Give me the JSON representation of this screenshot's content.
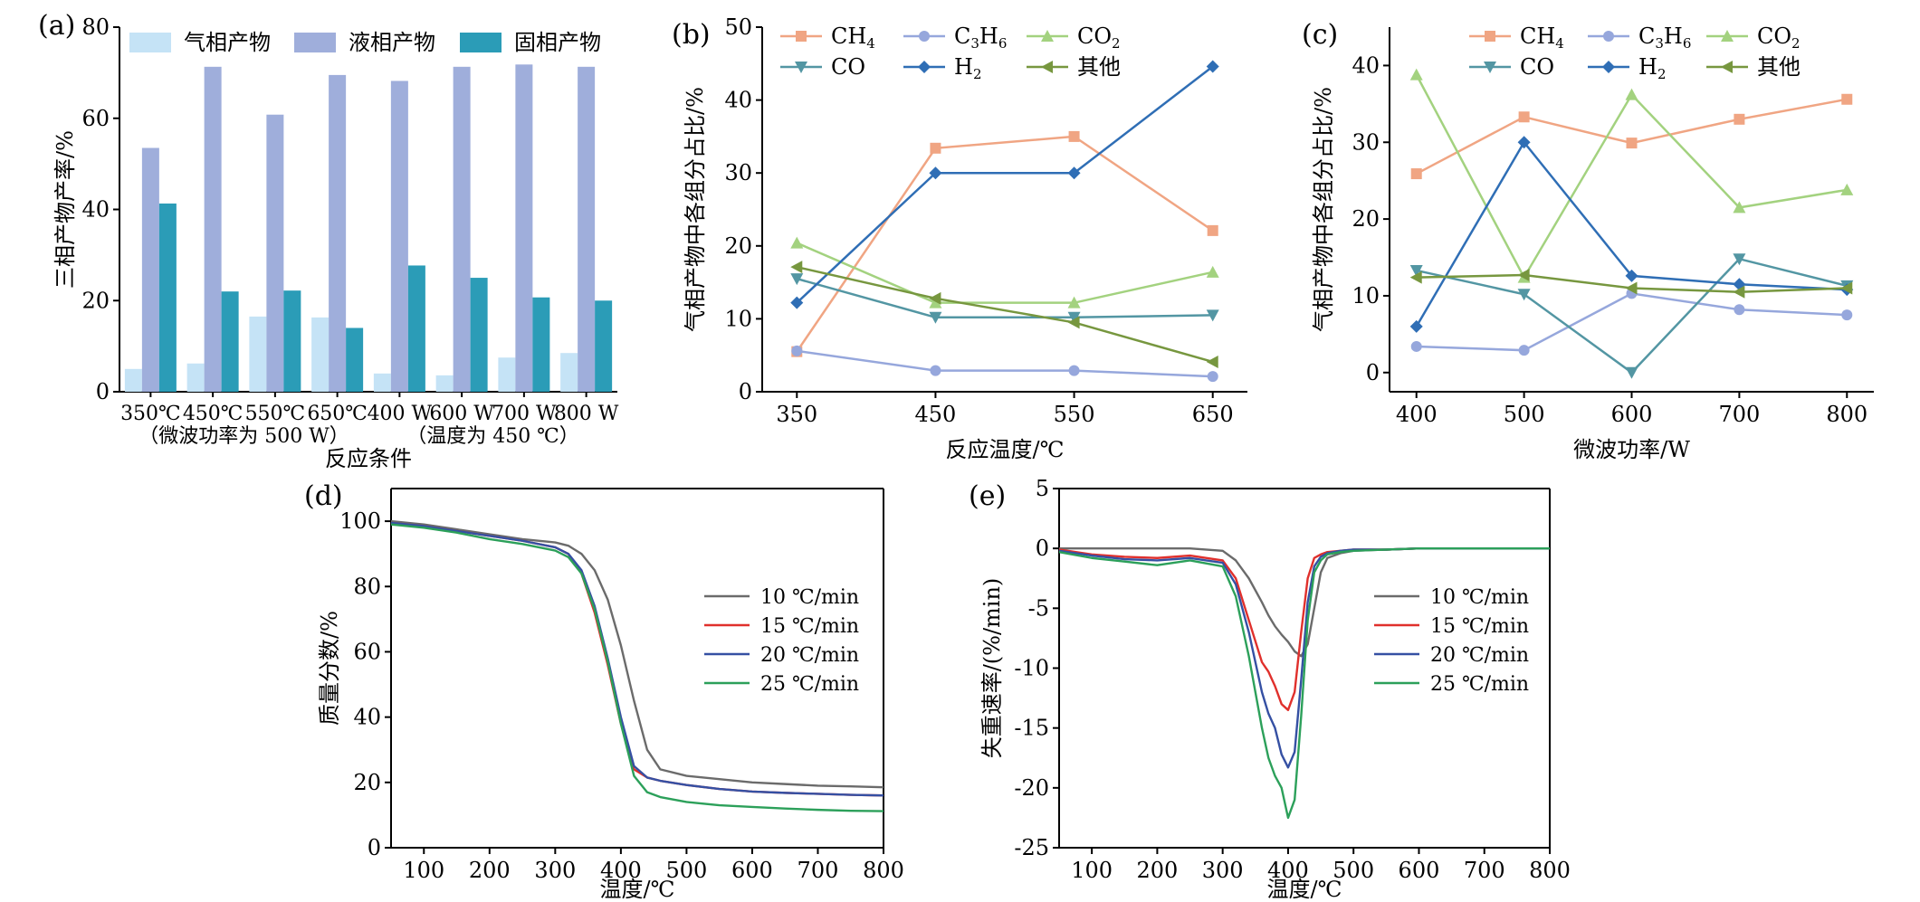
{
  "chart_data": [
    {
      "panel": "(a)",
      "type": "bar",
      "ylabel": "三相产物产率/%",
      "xlabel": "反应条件",
      "ylim": [
        0,
        80
      ],
      "yticks": [
        0,
        20,
        40,
        60,
        80
      ],
      "categories": [
        "350℃",
        "450℃",
        "550℃",
        "650℃",
        "400 W",
        "600 W",
        "700 W",
        "800 W"
      ],
      "group_notes": [
        "（微波功率为 500 W）",
        "（温度为  450 ℃）"
      ],
      "legend_position": "top",
      "series": [
        {
          "name": "气相产物",
          "color": "#c5e3f6",
          "values": [
            5,
            6.2,
            16.5,
            16.3,
            4,
            3.6,
            7.5,
            8.5
          ]
        },
        {
          "name": "液相产物",
          "color": "#9faedb",
          "values": [
            53.5,
            71.3,
            60.8,
            69.5,
            68.2,
            71.3,
            71.8,
            71.3
          ]
        },
        {
          "name": "固相产物",
          "color": "#2b9cb7",
          "values": [
            41.3,
            22,
            22.2,
            14,
            27.7,
            25,
            20.7,
            20
          ]
        }
      ]
    },
    {
      "panel": "(b)",
      "type": "line",
      "xlabel": "反应温度/℃",
      "ylabel": "气相产物中各组分占比/%",
      "x": [
        350,
        450,
        550,
        650
      ],
      "xlim": [
        325,
        675
      ],
      "ylim": [
        0,
        50
      ],
      "xticks": [
        350,
        450,
        550,
        650
      ],
      "yticks": [
        0,
        10,
        20,
        30,
        40,
        50
      ],
      "legend_position": "top",
      "series": [
        {
          "name": "CH4",
          "label_base": "CH",
          "label_sub": "4",
          "color": "#f0a583",
          "marker": "square",
          "values": [
            5.5,
            33.4,
            35,
            22.1
          ]
        },
        {
          "name": "C3H6",
          "label_base": "C",
          "label_sub": "3",
          "label_mid": "H",
          "label_sub2": "6",
          "color": "#96a7dc",
          "marker": "circle",
          "values": [
            5.6,
            2.9,
            2.9,
            2.1
          ]
        },
        {
          "name": "CO2",
          "label_base": "CO",
          "label_sub": "2",
          "color": "#a3d27f",
          "marker": "triangle-up",
          "values": [
            20.4,
            12.2,
            12.2,
            16.4
          ]
        },
        {
          "name": "CO",
          "label_base": "CO",
          "color": "#5396a3",
          "marker": "triangle-down",
          "values": [
            15.5,
            10.2,
            10.2,
            10.5
          ]
        },
        {
          "name": "H2",
          "label_base": "H",
          "label_sub": "2",
          "color": "#2f6eb5",
          "marker": "diamond",
          "values": [
            12.2,
            30,
            30,
            44.6
          ]
        },
        {
          "name": "其他",
          "label_base": "其他",
          "color": "#77973f",
          "marker": "triangle-left",
          "values": [
            17.1,
            12.8,
            9.5,
            4.1
          ]
        }
      ]
    },
    {
      "panel": "(c)",
      "type": "line",
      "xlabel": "微波功率/W",
      "ylabel": "气相产物中各组分占比/%",
      "x": [
        400,
        500,
        600,
        700,
        800
      ],
      "xlim": [
        375,
        825
      ],
      "ylim": [
        -2.5,
        45
      ],
      "xticks": [
        400,
        500,
        600,
        700,
        800
      ],
      "yticks": [
        0,
        10,
        20,
        30,
        40
      ],
      "legend_position": "top",
      "series": [
        {
          "name": "CH4",
          "label_base": "CH",
          "label_sub": "4",
          "color": "#f0a583",
          "marker": "square",
          "values": [
            25.9,
            33.3,
            29.9,
            33,
            35.6
          ]
        },
        {
          "name": "C3H6",
          "label_base": "C",
          "label_sub": "3",
          "label_mid": "H",
          "label_sub2": "6",
          "color": "#96a7dc",
          "marker": "circle",
          "values": [
            3.4,
            2.9,
            10.3,
            8.2,
            7.5
          ]
        },
        {
          "name": "CO2",
          "label_base": "CO",
          "label_sub": "2",
          "color": "#a3d27f",
          "marker": "triangle-up",
          "values": [
            38.8,
            12.4,
            36.2,
            21.5,
            23.8
          ]
        },
        {
          "name": "CO",
          "label_base": "CO",
          "color": "#5396a3",
          "marker": "triangle-down",
          "values": [
            13.3,
            10.2,
            0,
            14.8,
            11.3
          ]
        },
        {
          "name": "H2",
          "label_base": "H",
          "label_sub": "2",
          "color": "#2f6eb5",
          "marker": "diamond",
          "values": [
            6,
            30,
            12.6,
            11.5,
            10.8
          ]
        },
        {
          "name": "其他",
          "label_base": "其他",
          "color": "#77973f",
          "marker": "triangle-left",
          "values": [
            12.4,
            12.7,
            11,
            10.5,
            11
          ]
        }
      ]
    },
    {
      "panel": "(d)",
      "type": "line",
      "xlabel": "温度/℃",
      "ylabel": "质量分数/%",
      "x": [
        50,
        100,
        150,
        200,
        250,
        300,
        320,
        340,
        360,
        380,
        400,
        420,
        440,
        460,
        500,
        550,
        600,
        650,
        700,
        750,
        800
      ],
      "xlim": [
        50,
        800
      ],
      "ylim": [
        0,
        110
      ],
      "xticks": [
        100,
        200,
        300,
        400,
        500,
        600,
        700,
        800
      ],
      "yticks": [
        0,
        20,
        40,
        60,
        80,
        100
      ],
      "legend_position": "right",
      "series": [
        {
          "name": "10 ℃/min",
          "color": "#6b6b6b",
          "values": [
            100,
            99,
            97.5,
            96,
            94.5,
            93.5,
            92.5,
            90,
            85,
            76,
            62,
            45,
            30,
            24,
            22,
            21,
            20,
            19.5,
            19,
            18.8,
            18.5
          ]
        },
        {
          "name": "15 ℃/min",
          "color": "#e0302c",
          "values": [
            99.5,
            98.5,
            97,
            95.5,
            94,
            92,
            90,
            84,
            72,
            56,
            38,
            24,
            21.5,
            20.5,
            19.2,
            18,
            17.2,
            16.8,
            16.5,
            16.2,
            16
          ]
        },
        {
          "name": "20 ℃/min",
          "color": "#3550a3",
          "values": [
            99.5,
            98.5,
            97,
            95.5,
            94,
            92,
            90,
            85,
            74,
            58,
            40,
            25,
            21.5,
            20.5,
            19.2,
            18,
            17.2,
            16.8,
            16.5,
            16.2,
            16
          ]
        },
        {
          "name": "25 ℃/min",
          "color": "#2ca05a",
          "values": [
            99,
            98,
            96.5,
            94.5,
            93,
            91,
            89,
            84,
            73,
            57,
            38,
            22,
            17,
            15.5,
            14,
            13,
            12.5,
            12,
            11.6,
            11.3,
            11.2
          ]
        }
      ]
    },
    {
      "panel": "(e)",
      "type": "line",
      "xlabel": "温度/℃",
      "ylabel": "失重速率/(%/min)",
      "x": [
        50,
        100,
        150,
        200,
        250,
        300,
        320,
        340,
        360,
        370,
        380,
        390,
        400,
        410,
        420,
        430,
        440,
        450,
        460,
        480,
        500,
        550,
        600,
        650,
        700,
        750,
        800
      ],
      "xlim": [
        50,
        800
      ],
      "ylim": [
        -25,
        5
      ],
      "xticks": [
        100,
        200,
        300,
        400,
        500,
        600,
        700,
        800
      ],
      "yticks": [
        -25,
        -20,
        -15,
        -10,
        -5,
        0,
        5
      ],
      "legend_position": "right",
      "series": [
        {
          "name": "10 ℃/min",
          "color": "#6b6b6b",
          "values": [
            0,
            0,
            0,
            0,
            0,
            -0.2,
            -1,
            -2.5,
            -4.5,
            -5.6,
            -6.5,
            -7.2,
            -7.8,
            -8.6,
            -9,
            -8,
            -5,
            -2,
            -0.8,
            -0.4,
            -0.2,
            -0.1,
            0,
            0,
            0,
            0,
            0
          ]
        },
        {
          "name": "15 ℃/min",
          "color": "#e0302c",
          "values": [
            -0.1,
            -0.5,
            -0.7,
            -0.8,
            -0.6,
            -1,
            -2.5,
            -6,
            -9.5,
            -10.3,
            -11.5,
            -13,
            -13.5,
            -12,
            -7,
            -2.5,
            -0.8,
            -0.5,
            -0.3,
            -0.2,
            -0.1,
            -0.1,
            0,
            0,
            0,
            0,
            0
          ]
        },
        {
          "name": "20 ℃/min",
          "color": "#3550a3",
          "values": [
            -0.2,
            -0.6,
            -0.9,
            -1,
            -0.8,
            -1.2,
            -3,
            -7,
            -12,
            -13.8,
            -15,
            -17.2,
            -18.3,
            -17,
            -11,
            -4.5,
            -1.5,
            -0.7,
            -0.4,
            -0.2,
            -0.1,
            -0.1,
            0,
            0,
            0,
            0,
            0
          ]
        },
        {
          "name": "25 ℃/min",
          "color": "#2ca05a",
          "values": [
            -0.3,
            -0.8,
            -1.1,
            -1.4,
            -1,
            -1.5,
            -4,
            -9,
            -15,
            -17.5,
            -19,
            -20,
            -22.5,
            -21,
            -14,
            -6,
            -2,
            -1,
            -0.5,
            -0.3,
            -0.2,
            -0.1,
            0,
            0,
            0,
            0,
            0
          ]
        }
      ]
    }
  ]
}
